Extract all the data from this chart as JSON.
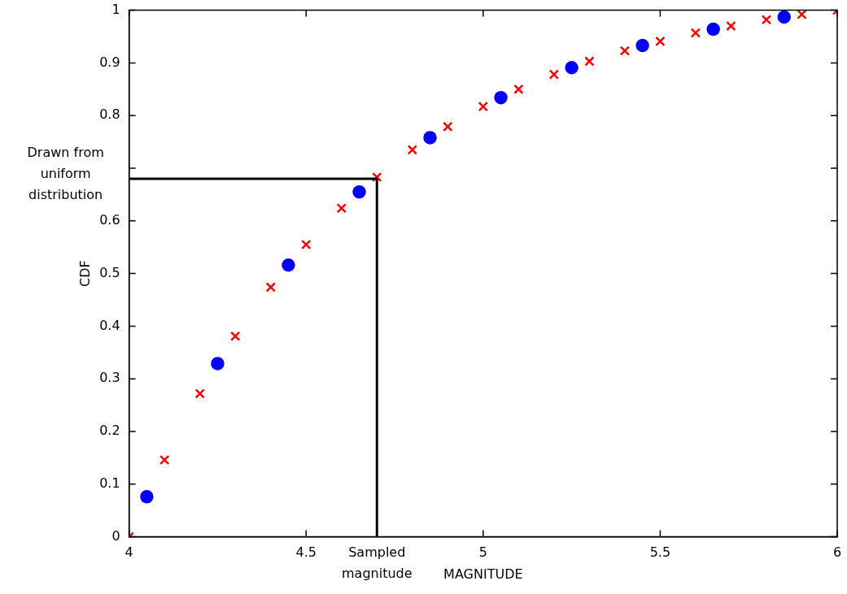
{
  "chart_data": {
    "type": "scatter",
    "xlabel": "MAGNITUDE",
    "ylabel": "CDF",
    "xlim": [
      4,
      6
    ],
    "ylim": [
      0,
      1
    ],
    "xticks": [
      4,
      4.5,
      5,
      5.5,
      6
    ],
    "yticks": [
      0,
      0.1,
      0.2,
      0.3,
      0.4,
      0.5,
      0.6,
      {
        "value": 0.7,
        "label": null
      },
      0.8,
      0.9,
      1
    ],
    "grid": false,
    "legend": false,
    "series": [
      {
        "color": "#0000ff",
        "marker": "circle",
        "x": [
          4.05,
          4.25,
          4.45,
          4.65,
          4.85,
          5.05,
          5.25,
          5.45,
          5.65,
          5.85
        ],
        "values": [
          0.076,
          0.329,
          0.516,
          0.655,
          0.758,
          0.834,
          0.891,
          0.933,
          0.964,
          0.987
        ]
      },
      {
        "color": "#ff0000",
        "marker": "cross",
        "x": [
          4,
          4.1,
          4.2,
          4.3,
          4.4,
          4.5,
          4.6,
          4.7,
          4.8,
          4.9,
          5,
          5.1,
          5.2,
          5.3,
          5.4,
          5.5,
          5.6,
          5.7,
          5.8,
          5.9,
          6
        ],
        "values": [
          0,
          0.146,
          0.272,
          0.381,
          0.474,
          0.555,
          0.624,
          0.683,
          0.735,
          0.779,
          0.817,
          0.85,
          0.878,
          0.903,
          0.923,
          0.941,
          0.957,
          0.97,
          0.982,
          0.992,
          1
        ]
      }
    ],
    "ref_lines": [
      {
        "axis": "x",
        "value": 4.7,
        "label": "Sampled magnitude",
        "color": "#000000"
      },
      {
        "axis": "y",
        "value": 0.68,
        "label": "Drawn from uniform distribution",
        "color": "#000000"
      }
    ]
  }
}
